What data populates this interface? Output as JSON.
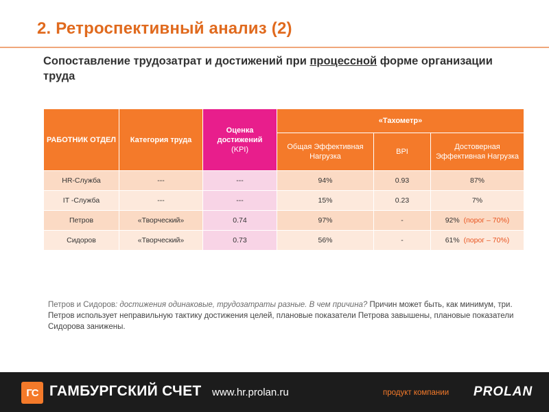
{
  "slide": {
    "title": "2. Ретроспективный анализ (2)",
    "subtitle_part1": "Сопоставление трудозатрат и достижений при ",
    "subtitle_underlined": "процессной",
    "subtitle_part2": " форме организации труда"
  },
  "table": {
    "header": {
      "col_worker": "РАБОТНИК ОТДЕЛ",
      "col_category": "Категория  труда",
      "col_kpi": "Оценка достижений",
      "col_kpi_sub": "(KPI)",
      "col_tachometer": "«Тахометр»",
      "sub_total_load": "Общая Эффективная Нагрузка",
      "sub_bpi": "BPI",
      "sub_reliable_load": "Достоверная Эффективная Нагрузка"
    },
    "rows": [
      {
        "worker": "HR-Служба",
        "category": "---",
        "kpi": "---",
        "total": "94%",
        "bpi": "0.93",
        "reliable": "87%",
        "threshold": ""
      },
      {
        "worker": "IT -Служба",
        "category": "---",
        "kpi": "---",
        "total": "15%",
        "bpi": "0.23",
        "reliable": "7%",
        "threshold": ""
      },
      {
        "worker": "Петров",
        "category": "«Творческий»",
        "kpi": "0.74",
        "total": "97%",
        "bpi": "-",
        "reliable": "92%",
        "threshold": "(порог – 70%)"
      },
      {
        "worker": "Сидоров",
        "category": "«Творческий»",
        "kpi": "0.73",
        "total": "56%",
        "bpi": "-",
        "reliable": "61%",
        "threshold": "(порог – 70%)"
      }
    ]
  },
  "note": {
    "lead_names": "Петров и Сидоров",
    "lead_rest": ": достижения одинаковые, трудозатраты разные. В чем причина?",
    "body": "  Причин может быть, как минимум, три. Петров использует неправильную тактику достижения целей,  плановые показатели Петрова завышены, плановые показатели Сидорова занижены."
  },
  "footer": {
    "logo_text": "ГС",
    "brand": "ГАМБУРГСКИЙ СЧЕТ",
    "site": "www.hr.prolan.ru",
    "product_label": "продукт компании",
    "company": "PROLAN"
  },
  "colors": {
    "accent_orange": "#f47a2a",
    "kpi_pink": "#e81e8c",
    "title_orange": "#e06a1e",
    "footer_bg": "#1c1c1c"
  }
}
